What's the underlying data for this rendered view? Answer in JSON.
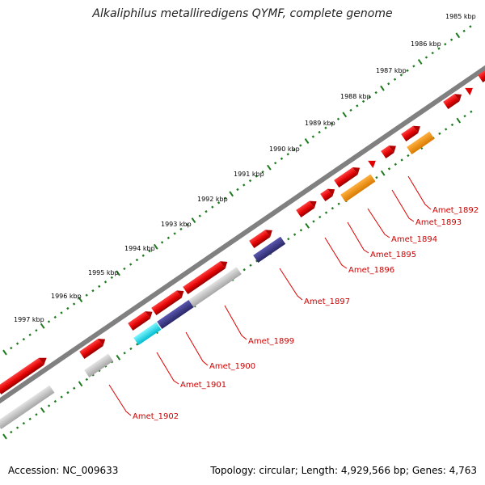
{
  "title": "Alkaliphilus metalliredigens QYMF, complete genome",
  "footer": {
    "accession": "Accession: NC_009633",
    "summary": "Topology: circular; Length: 4,929,566 bp; Genes: 4,763"
  },
  "colors": {
    "backbone": "#808080",
    "tick": "#1e7a1e",
    "forward_gene": "#ff0000",
    "reverse_blue": "#3d3a8a",
    "reverse_orange": "#ff9900",
    "reverse_cyan": "#00e5ee",
    "reverse_gray": "#c0c0c0",
    "label_text": "#cc0000"
  },
  "kbp_markers": [
    "1985 kbp",
    "1986 kbp",
    "1987 kbp",
    "1988 kbp",
    "1989 kbp",
    "1990 kbp",
    "1991 kbp",
    "1992 kbp",
    "1993 kbp",
    "1994 kbp",
    "1995 kbp",
    "1996 kbp",
    "1997 kbp"
  ],
  "gene_labels": [
    "Amet_1892",
    "Amet_1893",
    "Amet_1894",
    "Amet_1895",
    "Amet_1896",
    "Amet_1897",
    "Amet_1899",
    "Amet_1900",
    "Amet_1901",
    "Amet_1902"
  ]
}
